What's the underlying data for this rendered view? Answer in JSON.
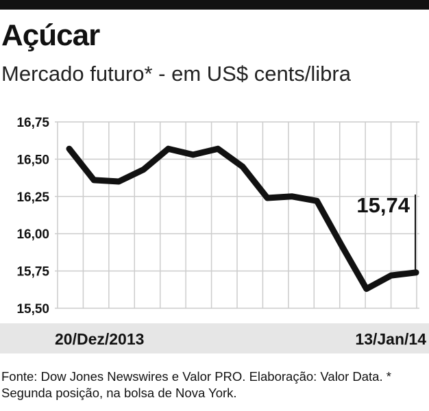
{
  "title": "Açúcar",
  "subtitle": "Mercado futuro* - em US$ cents/libra",
  "footnote": "Fonte: Dow Jones Newswires e Valor PRO. Elaboração: Valor Data. * Segunda posição, na bolsa de Nova York.",
  "colors": {
    "line": "#111111",
    "grid": "#cccccc",
    "band": "#e6e6e6"
  },
  "chart_data": {
    "type": "line",
    "title": "Açúcar",
    "subtitle": "Mercado futuro* - em US$ cents/libra",
    "x_labels": {
      "start": "20/Dez/2013",
      "end": "13/Jan/14"
    },
    "y_ticks": [
      "16,75",
      "16,50",
      "16,25",
      "16,00",
      "15,75",
      "15,50"
    ],
    "ylim": [
      15.5,
      16.75
    ],
    "grid": true,
    "values": [
      16.57,
      16.36,
      16.35,
      16.43,
      16.57,
      16.53,
      16.57,
      16.45,
      16.24,
      16.25,
      16.22,
      15.92,
      15.63,
      15.72,
      15.74
    ],
    "annotation": {
      "label": "15,74",
      "index": 14
    }
  }
}
